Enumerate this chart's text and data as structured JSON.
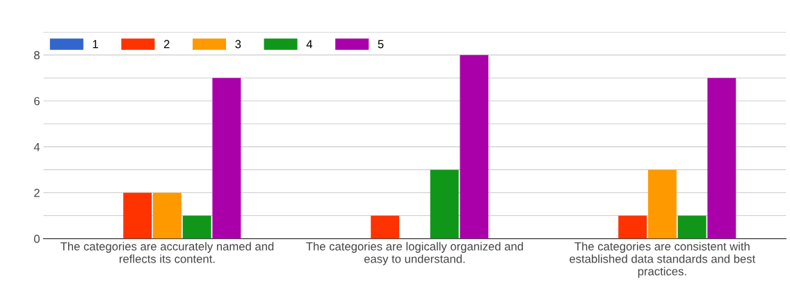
{
  "chart_data": {
    "type": "bar",
    "categories": [
      "The categories are accurately named and reflects its content.",
      "The categories are logically organized and easy to understand.",
      "The categories are consistent with established data standards and best practices."
    ],
    "series": [
      {
        "name": "1",
        "color": "#3366cc",
        "values": [
          0,
          0,
          0
        ]
      },
      {
        "name": "2",
        "color": "#ff3300",
        "values": [
          2,
          1,
          1
        ]
      },
      {
        "name": "3",
        "color": "#ff9900",
        "values": [
          2,
          0,
          3
        ]
      },
      {
        "name": "4",
        "color": "#109618",
        "values": [
          1,
          3,
          1
        ]
      },
      {
        "name": "5",
        "color": "#aa00aa",
        "values": [
          7,
          8,
          7
        ]
      }
    ],
    "ylim": [
      0,
      9
    ],
    "yticks": [
      0,
      {
        "value": 1,
        "label": null
      },
      2,
      {
        "value": 3,
        "label": null
      },
      4,
      {
        "value": 5,
        "label": null
      },
      6,
      {
        "value": 7,
        "label": null
      },
      8,
      {
        "value": 9,
        "label": null
      }
    ],
    "grid": "y",
    "legend": "top left"
  }
}
